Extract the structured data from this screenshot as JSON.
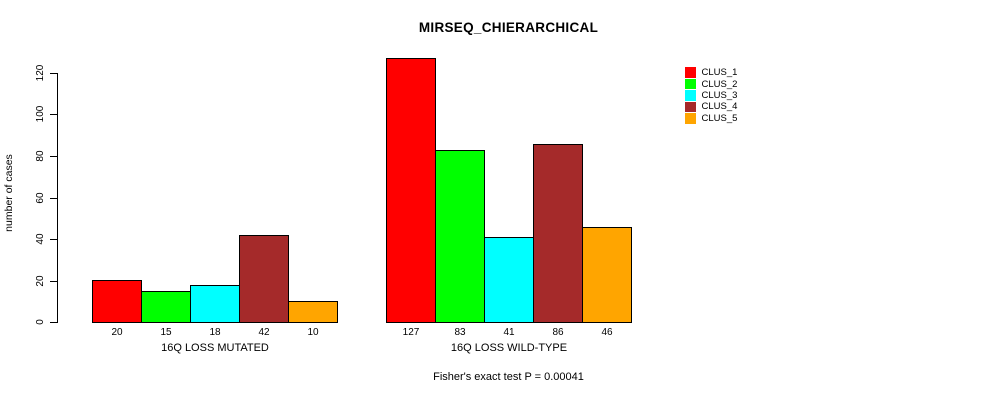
{
  "title": "MIRSEQ_CHIERARCHICAL",
  "chart_data": {
    "type": "bar",
    "title": "MIRSEQ_CHIERARCHICAL",
    "xlabel": "",
    "ylabel": "number of cases",
    "ylim": [
      0,
      120
    ],
    "yticks": [
      0,
      20,
      40,
      60,
      80,
      100,
      120
    ],
    "grid": false,
    "legend_position": "top-right",
    "categories": [
      "16Q LOSS MUTATED",
      "16Q LOSS WILD-TYPE"
    ],
    "groups": [
      {
        "label": "16Q LOSS MUTATED",
        "values": [
          20,
          15,
          18,
          42,
          10
        ]
      },
      {
        "label": "16Q LOSS WILD-TYPE",
        "values": [
          127,
          83,
          41,
          86,
          46
        ]
      }
    ],
    "series": [
      {
        "name": "CLUS_1",
        "color": "#ff0000",
        "values": [
          20,
          127
        ]
      },
      {
        "name": "CLUS_2",
        "color": "#00ff00",
        "values": [
          15,
          83
        ]
      },
      {
        "name": "CLUS_3",
        "color": "#00ffff",
        "values": [
          18,
          41
        ]
      },
      {
        "name": "CLUS_4",
        "color": "#a52a2a",
        "values": [
          42,
          86
        ]
      },
      {
        "name": "CLUS_5",
        "color": "#ffa500",
        "values": [
          10,
          46
        ]
      }
    ],
    "bar_border_color": "#000000",
    "annotation": "Fisher's exact test P = 0.00041"
  }
}
